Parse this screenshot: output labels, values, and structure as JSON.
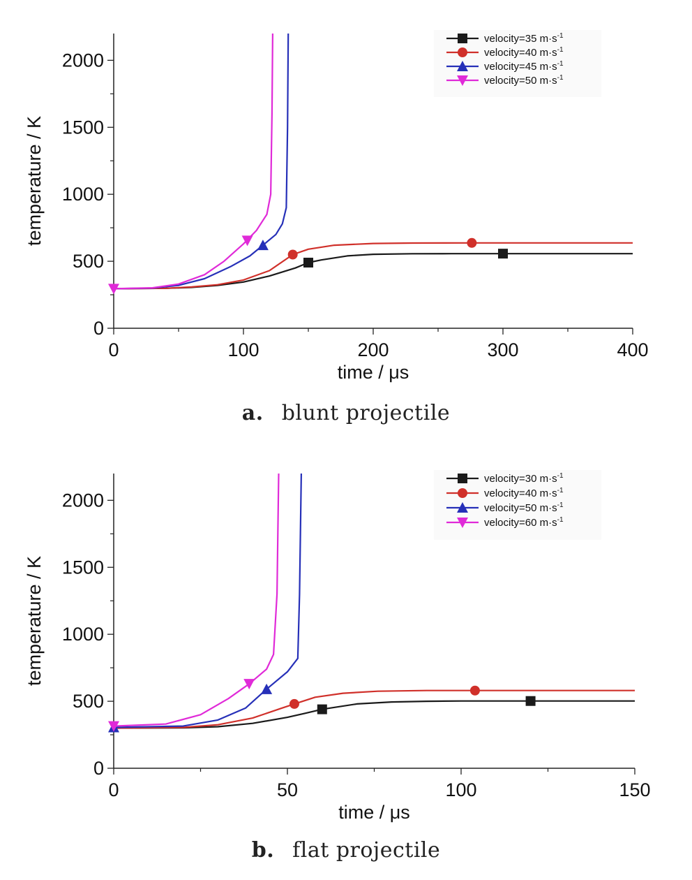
{
  "chart_data": [
    {
      "type": "line",
      "caption_letter": "a.",
      "caption_text": "blunt projectile",
      "xlabel": "time / μs",
      "ylabel": "temperature / K",
      "xlim": [
        0,
        400
      ],
      "ylim": [
        0,
        2200
      ],
      "xticks": [
        0,
        100,
        200,
        300,
        400
      ],
      "yticks": [
        0,
        500,
        1000,
        1500,
        2000
      ],
      "legend_position": "top-right",
      "series": [
        {
          "name": "velocity=35 m·s-1",
          "base": "velocity=35 m·s",
          "sup": "-1",
          "color": "#1a1a1a",
          "marker": "square",
          "x": [
            0,
            40,
            60,
            80,
            100,
            120,
            140,
            150,
            160,
            180,
            200,
            230,
            260,
            300,
            400
          ],
          "y": [
            295,
            298,
            305,
            320,
            345,
            390,
            450,
            490,
            510,
            540,
            552,
            556,
            557,
            557,
            557
          ],
          "markers": [
            [
              150,
              490
            ],
            [
              300,
              557
            ]
          ]
        },
        {
          "name": "velocity=40 m·s-1",
          "base": "velocity=40 m·s",
          "sup": "-1",
          "color": "#d0302a",
          "marker": "circle",
          "x": [
            0,
            40,
            60,
            80,
            100,
            120,
            138,
            150,
            170,
            200,
            230,
            276,
            400
          ],
          "y": [
            295,
            298,
            308,
            325,
            360,
            430,
            550,
            590,
            620,
            633,
            636,
            637,
            637
          ],
          "markers": [
            [
              138,
              550
            ],
            [
              276,
              637
            ]
          ]
        },
        {
          "name": "velocity=45 m·s-1",
          "base": "velocity=45 m·s",
          "sup": "-1",
          "color": "#2630b8",
          "marker": "triangle-up",
          "x": [
            0,
            30,
            50,
            70,
            90,
            105,
            115,
            125,
            130,
            133,
            134,
            134.5
          ],
          "y": [
            295,
            300,
            320,
            370,
            460,
            540,
            620,
            700,
            780,
            900,
            1500,
            2200
          ],
          "markers": [
            [
              115,
              620
            ]
          ]
        },
        {
          "name": "velocity=50 m·s-1",
          "base": "velocity=50 m·s",
          "sup": "-1",
          "color": "#e02ad8",
          "marker": "triangle-down",
          "x": [
            0,
            30,
            50,
            70,
            85,
            100,
            110,
            118,
            121,
            122,
            122.5
          ],
          "y": [
            295,
            302,
            330,
            400,
            500,
            630,
            730,
            850,
            1000,
            1600,
            2200
          ],
          "markers": [
            [
              0,
              295
            ],
            [
              103,
              655
            ]
          ]
        }
      ]
    },
    {
      "type": "line",
      "caption_letter": "b.",
      "caption_text": "flat projectile",
      "xlabel": "time / μs",
      "ylabel": "temperature / K",
      "xlim": [
        0,
        150
      ],
      "ylim": [
        0,
        2200
      ],
      "xticks": [
        0,
        50,
        100,
        150
      ],
      "yticks": [
        0,
        500,
        1000,
        1500,
        2000
      ],
      "legend_position": "top-right",
      "series": [
        {
          "name": "velocity=30 m·s-1",
          "base": "velocity=30 m·s",
          "sup": "-1",
          "color": "#1a1a1a",
          "marker": "square",
          "x": [
            0,
            20,
            30,
            40,
            50,
            55,
            60,
            70,
            80,
            90,
            100,
            120,
            150
          ],
          "y": [
            300,
            302,
            310,
            335,
            380,
            410,
            440,
            480,
            495,
            500,
            502,
            502,
            502
          ],
          "markers": [
            [
              60,
              440
            ],
            [
              120,
              502
            ]
          ]
        },
        {
          "name": "velocity=40 m·s-1",
          "base": "velocity=40 m·s",
          "sup": "-1",
          "color": "#d0302a",
          "marker": "circle",
          "x": [
            0,
            20,
            30,
            40,
            48,
            52,
            58,
            66,
            76,
            90,
            104,
            150
          ],
          "y": [
            300,
            305,
            325,
            375,
            445,
            480,
            530,
            560,
            575,
            580,
            580,
            580
          ],
          "markers": [
            [
              52,
              480
            ],
            [
              104,
              580
            ]
          ]
        },
        {
          "name": "velocity=50 m·s-1",
          "base": "velocity=50 m·s",
          "sup": "-1",
          "color": "#2630b8",
          "marker": "triangle-up",
          "x": [
            0,
            20,
            30,
            38,
            44,
            50,
            53,
            53.5,
            54
          ],
          "y": [
            305,
            315,
            360,
            450,
            590,
            720,
            820,
            1300,
            2200
          ],
          "markers": [
            [
              0,
              305
            ],
            [
              44,
              590
            ]
          ]
        },
        {
          "name": "velocity=60 m·s-1",
          "base": "velocity=60 m·s",
          "sup": "-1",
          "color": "#e02ad8",
          "marker": "triangle-down",
          "x": [
            0,
            15,
            25,
            33,
            39,
            44,
            46,
            47,
            47.5
          ],
          "y": [
            315,
            330,
            400,
            520,
            630,
            740,
            850,
            1300,
            2200
          ],
          "markers": [
            [
              0,
              315
            ],
            [
              39,
              630
            ]
          ]
        }
      ]
    }
  ]
}
